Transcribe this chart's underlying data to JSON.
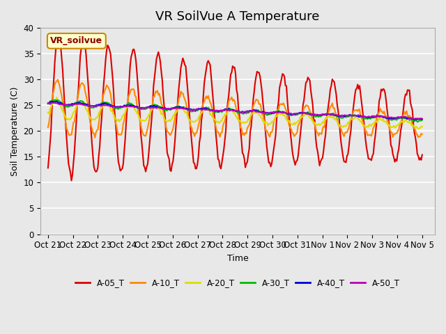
{
  "title": "VR SoilVue A Temperature",
  "xlabel": "Time",
  "ylabel": "Soil Temperature (C)",
  "ylim": [
    0,
    40
  ],
  "yticks": [
    0,
    5,
    10,
    15,
    20,
    25,
    30,
    35,
    40
  ],
  "legend_label": "VR_soilvue",
  "series_labels": [
    "A-05_T",
    "A-10_T",
    "A-20_T",
    "A-30_T",
    "A-40_T",
    "A-50_T"
  ],
  "series_colors": [
    "#dd0000",
    "#ff8800",
    "#dddd00",
    "#00bb00",
    "#0000dd",
    "#bb00bb"
  ],
  "series_linewidths": [
    1.5,
    1.5,
    1.5,
    1.5,
    1.5,
    1.5
  ],
  "xtick_labels": [
    "Oct 21",
    "Oct 22",
    "Oct 23",
    "Oct 24",
    "Oct 25",
    "Oct 26",
    "Oct 27",
    "Oct 28",
    "Oct 29",
    "Oct 30",
    "Oct 31",
    "Nov 1",
    "Nov 2",
    "Nov 3",
    "Nov 4",
    "Nov 5"
  ],
  "background_color": "#e8e8e8",
  "plot_bg_color": "#e8e8e8",
  "grid_color": "#ffffff",
  "title_fontsize": 13,
  "axis_fontsize": 9,
  "tick_fontsize": 8.5
}
